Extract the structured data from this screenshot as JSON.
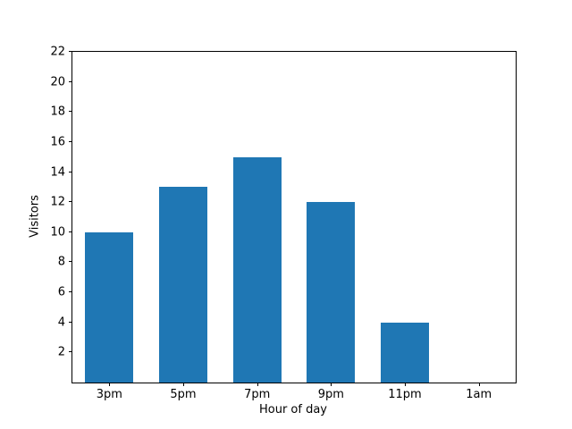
{
  "chart_data": {
    "type": "bar",
    "categories": [
      "3pm",
      "5pm",
      "7pm",
      "9pm",
      "11pm",
      "1am"
    ],
    "values": [
      10,
      13,
      15,
      12,
      4,
      0
    ],
    "title": "",
    "xlabel": "Hour of day",
    "ylabel": "Visitors",
    "ylim": [
      0,
      22
    ],
    "yticks": [
      2,
      4,
      6,
      8,
      10,
      12,
      14,
      16,
      18,
      20,
      22
    ],
    "bar_color": "#1f77b4",
    "axis_color": "#000000",
    "background_color": "#ffffff",
    "grid": false,
    "legend": null
  }
}
